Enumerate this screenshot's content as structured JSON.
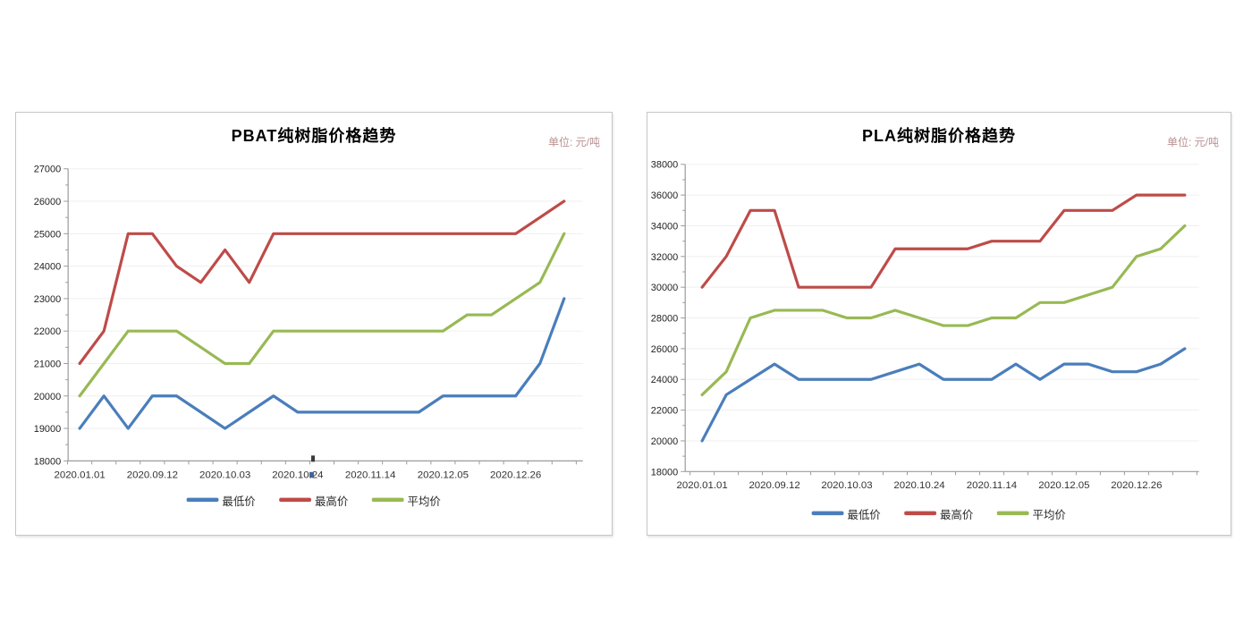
{
  "page": {
    "background": "#ffffff",
    "border_color": "#c6c6c6",
    "grid_color": "#efefef",
    "axis_color": "#9b9b9b",
    "text_color": "#333333",
    "unit_text_color": "#ba9191"
  },
  "chart_data": [
    {
      "type": "line",
      "title": "PBAT纯树脂价格趋势",
      "unit_label": "单位: 元/吨",
      "xlabel": "",
      "ylabel": "",
      "ylim": [
        18000,
        27000
      ],
      "ystep": 1000,
      "grid": true,
      "legend_position": "bottom",
      "n_points": 21,
      "x_label_every": 3,
      "x_tick_labels": [
        "2020.01.01",
        "2020.09.12",
        "2020.10.03",
        "2020.10.24",
        "2020.11.14",
        "2020.12.05",
        "2020.12.26"
      ],
      "series": [
        {
          "name": "最低价",
          "color": "#4A7EBB",
          "values": [
            19000,
            20000,
            19000,
            20000,
            20000,
            19500,
            19000,
            19500,
            20000,
            19500,
            19500,
            19500,
            19500,
            19500,
            19500,
            20000,
            20000,
            20000,
            20000,
            21000,
            23000
          ]
        },
        {
          "name": "最高价",
          "color": "#BE4B48",
          "values": [
            21000,
            22000,
            25000,
            25000,
            24000,
            23500,
            24500,
            23500,
            25000,
            25000,
            25000,
            25000,
            25000,
            25000,
            25000,
            25000,
            25000,
            25000,
            25000,
            25500,
            26000
          ]
        },
        {
          "name": "平均价",
          "color": "#98B954",
          "values": [
            20000,
            21000,
            22000,
            22000,
            22000,
            21500,
            21000,
            21000,
            22000,
            22000,
            22000,
            22000,
            22000,
            22000,
            22000,
            22000,
            22500,
            22500,
            23000,
            23500,
            25000
          ]
        }
      ]
    },
    {
      "type": "line",
      "title": "PLA纯树脂价格趋势",
      "unit_label": "单位: 元/吨",
      "xlabel": "",
      "ylabel": "",
      "ylim": [
        18000,
        38000
      ],
      "ystep": 2000,
      "grid": true,
      "legend_position": "bottom",
      "n_points": 21,
      "x_label_every": 3,
      "x_tick_labels": [
        "2020.01.01",
        "2020.09.12",
        "2020.10.03",
        "2020.10.24",
        "2020.11.14",
        "2020.12.05",
        "2020.12.26"
      ],
      "series": [
        {
          "name": "最低价",
          "color": "#4A7EBB",
          "values": [
            20000,
            23000,
            24000,
            25000,
            24000,
            24000,
            24000,
            24000,
            24500,
            25000,
            24000,
            24000,
            24000,
            25000,
            24000,
            25000,
            25000,
            24500,
            24500,
            25000,
            26000
          ]
        },
        {
          "name": "最高价",
          "color": "#BE4B48",
          "values": [
            30000,
            32000,
            35000,
            35000,
            30000,
            30000,
            30000,
            30000,
            32500,
            32500,
            32500,
            32500,
            33000,
            33000,
            33000,
            35000,
            35000,
            35000,
            36000,
            36000,
            36000
          ]
        },
        {
          "name": "平均价",
          "color": "#98B954",
          "values": [
            23000,
            24500,
            28000,
            28500,
            28500,
            28500,
            28000,
            28000,
            28500,
            28000,
            27500,
            27500,
            28000,
            28000,
            29000,
            29000,
            29500,
            30000,
            32000,
            32500,
            34000
          ]
        }
      ]
    }
  ]
}
